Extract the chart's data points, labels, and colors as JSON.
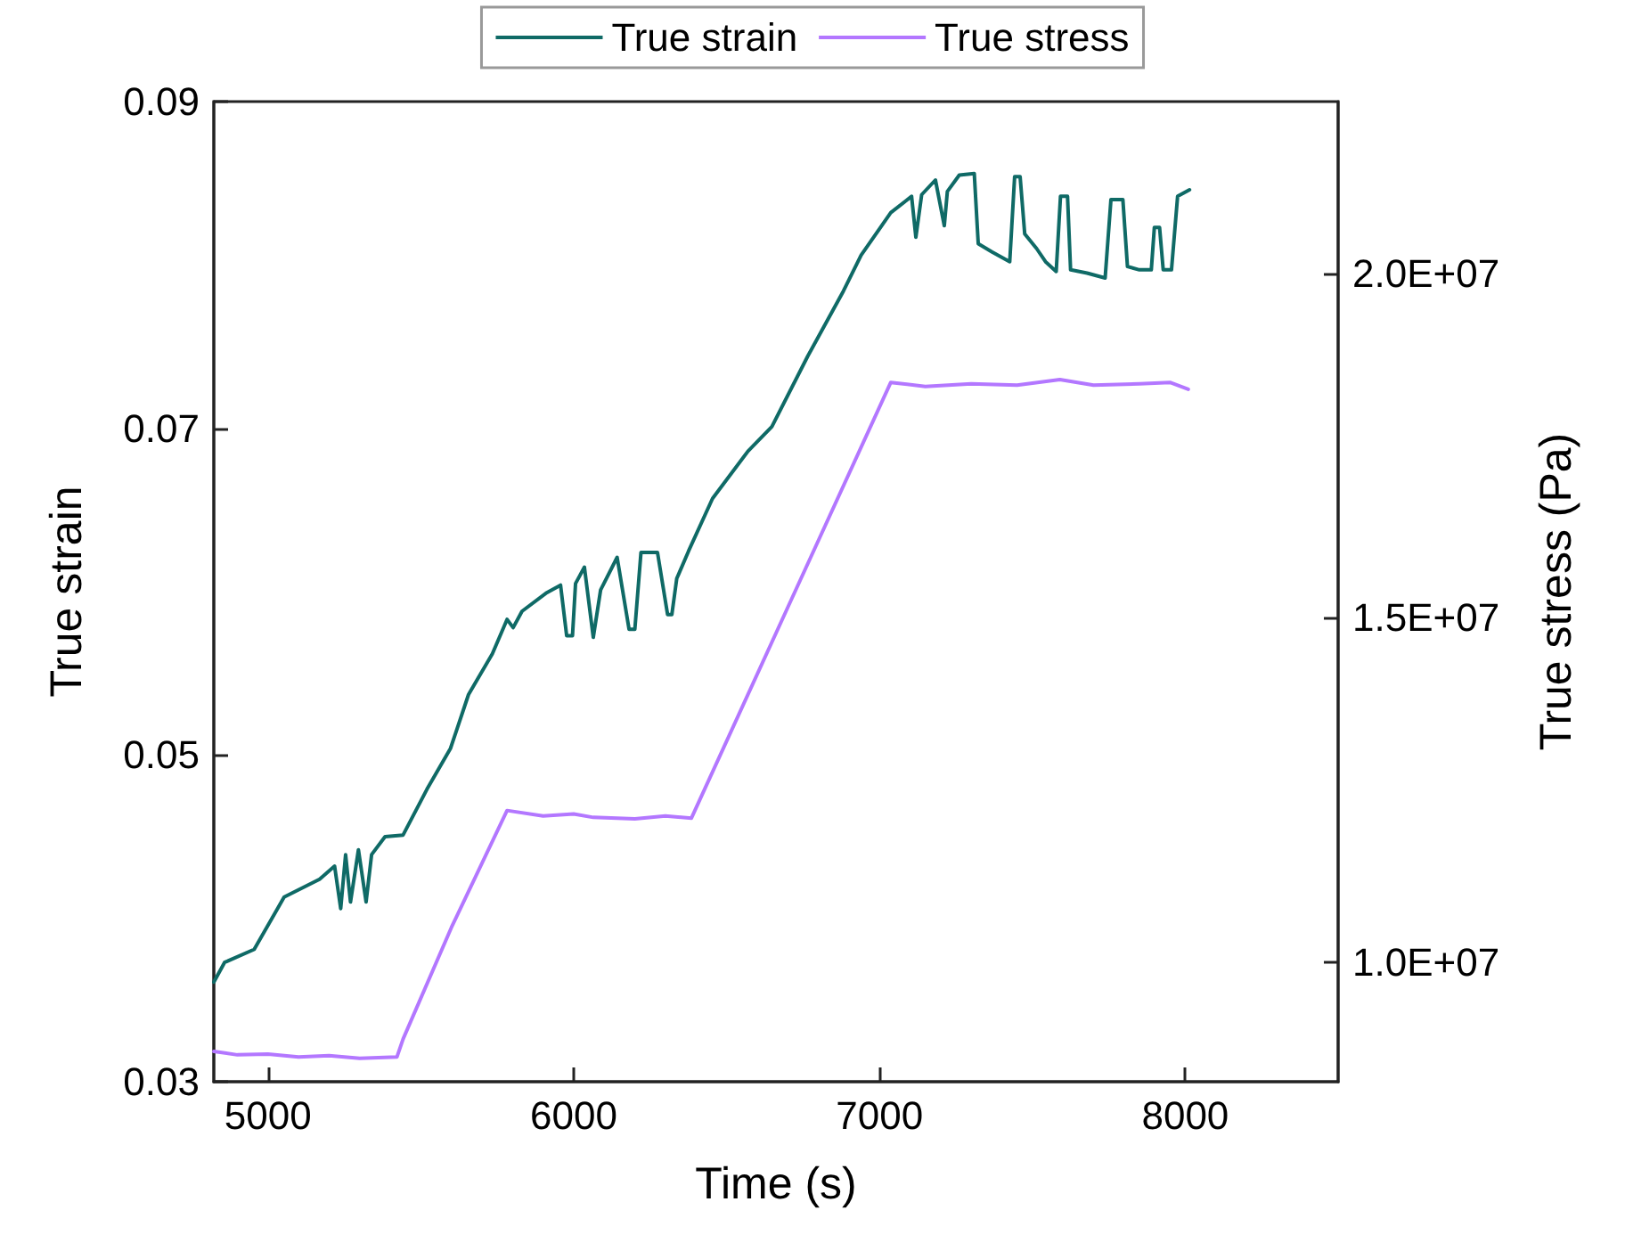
{
  "chart_data": {
    "type": "line",
    "xlabel": "Time (s)",
    "ylabel": "True strain",
    "y2label": "True stress (Pa)",
    "xlim": [
      4823,
      8500
    ],
    "xticks": [
      5000,
      6000,
      7000,
      8000
    ],
    "ylim": [
      0.03,
      0.09
    ],
    "yticks": [
      0.03,
      0.05,
      0.07,
      0.09
    ],
    "y2lim": [
      8260000,
      22500000
    ],
    "y2ticks": [
      {
        "value": 10000000,
        "label": "1.0E+07"
      },
      {
        "value": 15000000,
        "label": "1.5E+07"
      },
      {
        "value": 20000000,
        "label": "2.0E+07"
      }
    ],
    "grid": false,
    "legend": "top",
    "marker": "none",
    "line_style": "solid",
    "series": [
      {
        "name": "True strain",
        "color": "#0f6a66",
        "x": [
          4823,
          4858,
          4955,
          5053,
          5169,
          5218,
          5238,
          5254,
          5270,
          5296,
          5321,
          5339,
          5383,
          5442,
          5520,
          5597,
          5656,
          5734,
          5782,
          5802,
          5831,
          5909,
          5957,
          5977,
          5996,
          6006,
          6035,
          6064,
          6088,
          6142,
          6181,
          6200,
          6220,
          6274,
          6307,
          6321,
          6337,
          6376,
          6454,
          6570,
          6648,
          6765,
          6882,
          6940,
          7037,
          7105,
          7119,
          7138,
          7183,
          7212,
          7222,
          7261,
          7310,
          7323,
          7368,
          7426,
          7442,
          7460,
          7475,
          7514,
          7543,
          7578,
          7592,
          7615,
          7625,
          7679,
          7738,
          7757,
          7796,
          7811,
          7850,
          7889,
          7899,
          7916,
          7928,
          7955,
          7975,
          8014
        ],
        "values": [
          0.0361,
          0.0373,
          0.0381,
          0.0413,
          0.0424,
          0.0432,
          0.0406,
          0.0439,
          0.041,
          0.0442,
          0.041,
          0.0439,
          0.045,
          0.0451,
          0.0479,
          0.0504,
          0.0537,
          0.0562,
          0.0583,
          0.0578,
          0.0588,
          0.0599,
          0.0604,
          0.0573,
          0.0573,
          0.0605,
          0.0615,
          0.0572,
          0.0601,
          0.0621,
          0.0577,
          0.0577,
          0.0624,
          0.0624,
          0.0586,
          0.0586,
          0.0608,
          0.0625,
          0.0657,
          0.0686,
          0.0701,
          0.0744,
          0.0784,
          0.0806,
          0.0832,
          0.0842,
          0.0817,
          0.0843,
          0.0852,
          0.0824,
          0.0845,
          0.0855,
          0.0856,
          0.0813,
          0.0808,
          0.0802,
          0.0854,
          0.0854,
          0.0819,
          0.081,
          0.0802,
          0.0796,
          0.0842,
          0.0842,
          0.0797,
          0.0795,
          0.0792,
          0.084,
          0.084,
          0.0799,
          0.0797,
          0.0797,
          0.0823,
          0.0823,
          0.0797,
          0.0797,
          0.0842,
          0.0846
        ]
      },
      {
        "name": "True stress",
        "color": "#b377ff",
        "axis": "y2",
        "x": [
          4823,
          4900,
          5000,
          5100,
          5200,
          5300,
          5422,
          5442,
          5600,
          5782,
          5900,
          6000,
          6064,
          6200,
          6300,
          6385,
          6700,
          7037,
          7150,
          7300,
          7450,
          7590,
          7700,
          7850,
          7950,
          8010
        ],
        "values": [
          8700000,
          8650000,
          8660000,
          8620000,
          8640000,
          8600000,
          8620000,
          8880000,
          10500000,
          12200000,
          12120000,
          12150000,
          12100000,
          12080000,
          12120000,
          12090000,
          15150000,
          18420000,
          18360000,
          18400000,
          18380000,
          18460000,
          18380000,
          18400000,
          18420000,
          18320000
        ]
      }
    ]
  }
}
